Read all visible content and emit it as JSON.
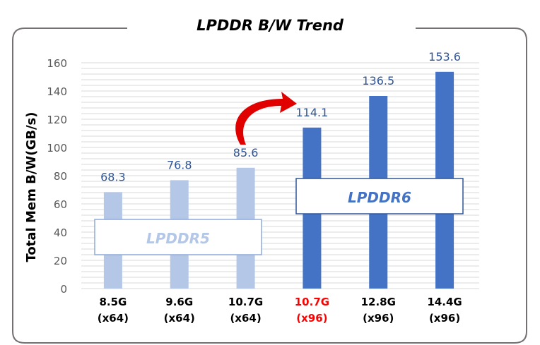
{
  "chart_data": {
    "type": "bar",
    "title": "LPDDR B/W Trend",
    "ylabel": "Total Mem B/W(GB/s)",
    "xlabel": "",
    "ylim": [
      0,
      160
    ],
    "yticks": [
      "0",
      "20",
      "40",
      "60",
      "80",
      "100",
      "120",
      "140",
      "160"
    ],
    "categories": [
      {
        "speed": "8.5G",
        "width": "(x64)",
        "highlight": false
      },
      {
        "speed": "9.6G",
        "width": "(x64)",
        "highlight": false
      },
      {
        "speed": "10.7G",
        "width": "(x64)",
        "highlight": false
      },
      {
        "speed": "10.7G",
        "width": "(x96)",
        "highlight": true
      },
      {
        "speed": "12.8G",
        "width": "(x96)",
        "highlight": false
      },
      {
        "speed": "14.4G",
        "width": "(x96)",
        "highlight": false
      }
    ],
    "values": [
      68.3,
      76.8,
      85.6,
      114.1,
      136.5,
      153.6
    ],
    "value_labels": [
      "68.3",
      "76.8",
      "85.6",
      "114.1",
      "136.5",
      "153.6"
    ],
    "groups": [
      {
        "name": "LPDDR5",
        "color": "#b4c7e7",
        "text_color": "#b4c7e7"
      },
      {
        "name": "LPDDR6",
        "color": "#4472c4",
        "text_color": "#4472c4"
      }
    ],
    "grid": true,
    "annotation": "red arrow from 10.7G (x64) to 10.7G (x96)"
  },
  "colors": {
    "label": "#2f5597",
    "highlight": "#ff0000",
    "frame": "#767171",
    "grid": "#ececec"
  }
}
